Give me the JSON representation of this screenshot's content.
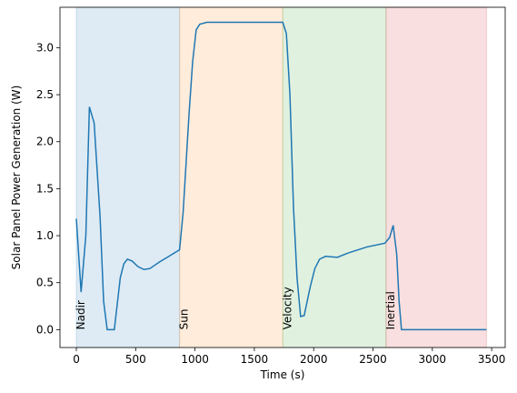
{
  "chart_data": {
    "type": "line",
    "xlabel": "Time (s)",
    "ylabel": "Solar Panel Power Generation (W)",
    "color": "#1f77b4",
    "x": [
      0,
      40,
      80,
      110,
      150,
      200,
      230,
      260,
      320,
      370,
      400,
      430,
      470,
      520,
      570,
      620,
      700,
      780,
      870,
      900,
      950,
      980,
      1010,
      1040,
      1100,
      1740,
      1770,
      1800,
      1830,
      1860,
      1890,
      1920,
      1970,
      2010,
      2050,
      2100,
      2200,
      2300,
      2450,
      2600,
      2640,
      2670,
      2700,
      2720,
      2740,
      3456
    ],
    "values": [
      1.18,
      0.4,
      1.0,
      2.37,
      2.2,
      1.2,
      0.3,
      0.0,
      0.0,
      0.55,
      0.7,
      0.75,
      0.73,
      0.67,
      0.64,
      0.65,
      0.72,
      0.78,
      0.85,
      1.25,
      2.3,
      2.85,
      3.19,
      3.25,
      3.27,
      3.27,
      3.15,
      2.5,
      1.3,
      0.55,
      0.14,
      0.15,
      0.45,
      0.65,
      0.75,
      0.78,
      0.77,
      0.82,
      0.88,
      0.92,
      0.98,
      1.11,
      0.8,
      0.3,
      0.0,
      0.0
    ],
    "regions": [
      {
        "label": "Nadir",
        "start": 0,
        "end": 870,
        "color": "#1f77b4"
      },
      {
        "label": "Sun",
        "start": 870,
        "end": 1740,
        "color": "#ff7f0e"
      },
      {
        "label": "Velocity",
        "start": 1740,
        "end": 2610,
        "color": "#2ca02c"
      },
      {
        "label": "Inertial",
        "start": 2610,
        "end": 3456,
        "color": "#d62728"
      }
    ],
    "xlim": [
      -138,
      3614
    ],
    "ylim": [
      -0.19,
      3.43
    ],
    "xticks": [
      0,
      500,
      1000,
      1500,
      2000,
      2500,
      3000,
      3500
    ],
    "yticks": [
      {
        "value": 0,
        "label": "0.0"
      },
      0.5,
      {
        "value": 1,
        "label": "1.0"
      },
      1.5,
      {
        "value": 2,
        "label": "2.0"
      },
      2.5,
      {
        "value": 3,
        "label": "3.0"
      }
    ]
  }
}
